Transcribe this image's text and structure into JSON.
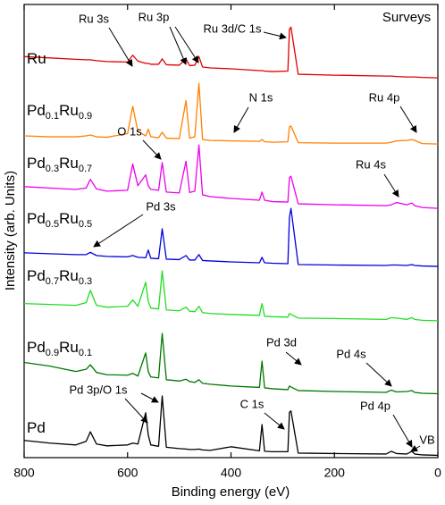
{
  "chart_data": {
    "type": "line",
    "xlabel": "Binding energy (eV)",
    "ylabel": "Intensity (arb. Units)",
    "xlim": [
      800,
      0
    ],
    "xticks": [
      800,
      600,
      400,
      200,
      0
    ],
    "ylim": [
      0,
      100
    ],
    "annotations": [
      "Surveys",
      "Ru 3s",
      "Ru 3p",
      "Ru 3d/C 1s",
      "N 1s",
      "Ru 4p",
      "O 1s",
      "Ru 4s",
      "Pd 3s",
      "Pd 3d",
      "Pd 4s",
      "Pd 3p/O 1s",
      "C 1s",
      "Pd 4p",
      "VB"
    ],
    "x": [
      800,
      750,
      700,
      680,
      672,
      660,
      640,
      600,
      590,
      580,
      565,
      560,
      555,
      540,
      533,
      525,
      500,
      487,
      480,
      470,
      462,
      455,
      440,
      400,
      345,
      340,
      335,
      320,
      290,
      287,
      284,
      270,
      200,
      100,
      90,
      80,
      60,
      50,
      45,
      30,
      0
    ],
    "series": [
      {
        "name": "Ru",
        "color": "#e00000",
        "values": [
          88.5,
          88.2,
          87.9,
          87.8,
          87.8,
          87.6,
          87.4,
          87.3,
          88.8,
          87.5,
          87.0,
          87.0,
          86.8,
          86.8,
          88.0,
          86.7,
          86.6,
          88.0,
          86.5,
          86.6,
          88.5,
          86.2,
          86.0,
          85.8,
          85.4,
          85.4,
          85.3,
          85.2,
          85.3,
          94.5,
          95.0,
          84.6,
          84.4,
          84.2,
          84.2,
          84.1,
          84.0,
          84.0,
          84.0,
          83.9,
          83.8
        ]
      },
      {
        "name": "Pd0.1Ru0.9",
        "color": "#ff8000",
        "values": [
          71.0,
          70.8,
          70.8,
          71.0,
          71.2,
          70.8,
          70.7,
          71.5,
          77.5,
          72.0,
          71.0,
          72.5,
          70.8,
          70.6,
          71.8,
          70.5,
          70.4,
          78.8,
          70.5,
          70.8,
          82.6,
          70.2,
          70.0,
          69.9,
          69.8,
          70.2,
          69.7,
          69.6,
          69.7,
          73.0,
          73.2,
          69.5,
          69.4,
          69.4,
          69.6,
          69.9,
          70.0,
          70.2,
          70.0,
          69.3,
          69.2
        ]
      },
      {
        "name": "Pd0.3Ru0.7",
        "color": "#ee00ee",
        "values": [
          59.8,
          59.5,
          59.2,
          59.5,
          61.4,
          59.3,
          58.8,
          59.0,
          64.8,
          60.0,
          62.4,
          60.0,
          59.2,
          59.0,
          65.1,
          58.6,
          58.4,
          65.4,
          58.5,
          58.8,
          69.0,
          58.0,
          57.6,
          57.2,
          56.8,
          58.6,
          56.8,
          56.5,
          56.4,
          61.8,
          62.1,
          56.0,
          55.8,
          55.6,
          55.8,
          56.3,
          55.8,
          56.2,
          55.6,
          55.2,
          55.0
        ]
      },
      {
        "name": "Pd0.5Ru0.5",
        "color": "#0000dd",
        "values": [
          45.2,
          45.0,
          44.8,
          44.8,
          45.3,
          44.6,
          44.4,
          44.3,
          44.6,
          44.2,
          44.1,
          45.8,
          44.0,
          43.9,
          50.5,
          43.8,
          43.7,
          44.6,
          43.6,
          43.6,
          44.8,
          43.5,
          43.4,
          43.2,
          43.0,
          44.2,
          43.0,
          42.9,
          42.8,
          53.0,
          55.0,
          42.6,
          42.5,
          42.4,
          42.5,
          42.5,
          42.4,
          42.6,
          42.4,
          42.3,
          42.2
        ]
      },
      {
        "name": "Pd0.7Ru0.3",
        "color": "#22dd22",
        "values": [
          34.0,
          33.8,
          33.6,
          34.2,
          36.9,
          33.6,
          33.2,
          33.4,
          34.8,
          33.4,
          38.7,
          34.5,
          33.0,
          32.8,
          41.2,
          32.6,
          32.4,
          33.2,
          32.3,
          32.2,
          33.4,
          32.0,
          31.8,
          31.6,
          31.4,
          34.0,
          31.2,
          31.1,
          31.0,
          31.8,
          31.6,
          30.8,
          30.7,
          30.5,
          30.9,
          30.8,
          30.5,
          30.9,
          30.5,
          30.3,
          30.2
        ]
      },
      {
        "name": "Pd0.9Ru0.1",
        "color": "#007700",
        "values": [
          21.0,
          20.2,
          19.0,
          19.5,
          20.5,
          18.8,
          18.3,
          18.2,
          18.6,
          18.0,
          23.1,
          19.0,
          17.8,
          17.6,
          27.4,
          17.2,
          16.9,
          17.3,
          16.8,
          16.6,
          17.2,
          16.4,
          16.2,
          15.8,
          15.5,
          21.3,
          15.4,
          15.2,
          15.0,
          15.8,
          15.6,
          14.8,
          14.6,
          14.4,
          14.9,
          14.5,
          14.6,
          14.8,
          14.4,
          14.2,
          14.1
        ]
      },
      {
        "name": "Pd",
        "color": "#000000",
        "values": [
          3.8,
          3.2,
          2.8,
          3.6,
          5.7,
          3.0,
          2.6,
          2.8,
          3.2,
          3.0,
          9.9,
          5.0,
          2.8,
          2.5,
          13.6,
          2.3,
          2.0,
          1.9,
          1.8,
          1.8,
          1.9,
          1.7,
          1.6,
          2.4,
          1.5,
          7.3,
          1.4,
          1.3,
          1.3,
          10.0,
          10.3,
          1.0,
          0.9,
          0.8,
          1.4,
          0.9,
          0.8,
          1.4,
          0.8,
          0.6,
          0.5
        ]
      }
    ]
  }
}
